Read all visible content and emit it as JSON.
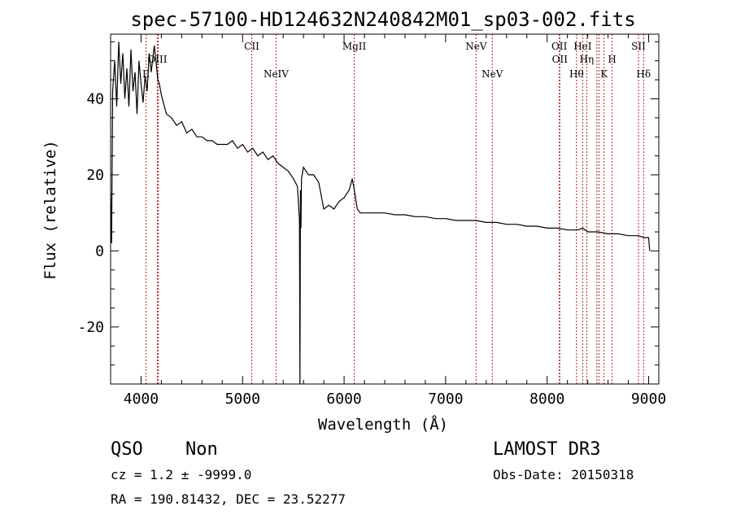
{
  "colors": {
    "spectrum": "#000000",
    "line_marker": "#b22222",
    "background": "#ffffff"
  },
  "chart_data": {
    "type": "line",
    "title": "spec-57100-HD124632N240842M01_sp03-002.fits",
    "xlabel": "Wavelength (Å)",
    "ylabel": "Flux (relative)",
    "xlim": [
      3700,
      9100
    ],
    "ylim": [
      -35,
      57
    ],
    "x_ticks": [
      4000,
      5000,
      6000,
      7000,
      8000,
      9000
    ],
    "y_ticks": [
      -20,
      0,
      20,
      40
    ],
    "grid": false,
    "series": [
      {
        "x": [
          3700,
          3710,
          3720,
          3740,
          3760,
          3780,
          3800,
          3820,
          3840,
          3860,
          3880,
          3900,
          3920,
          3940,
          3960,
          3980,
          4000,
          4020,
          4040,
          4060,
          4080,
          4100,
          4130,
          4150,
          4165,
          4180,
          4200,
          4250,
          4300,
          4350,
          4400,
          4450,
          4500,
          4550,
          4600,
          4650,
          4700,
          4750,
          4800,
          4850,
          4900,
          4950,
          5000,
          5050,
          5100,
          5150,
          5200,
          5250,
          5300,
          5350,
          5400,
          5450,
          5500,
          5540,
          5560,
          5565,
          5570,
          5575,
          5580,
          5600,
          5650,
          5700,
          5750,
          5800,
          5850,
          5900,
          5950,
          6000,
          6050,
          6080,
          6100,
          6130,
          6160,
          6200,
          6250,
          6300,
          6400,
          6500,
          6600,
          6700,
          6800,
          6900,
          7000,
          7100,
          7200,
          7300,
          7400,
          7500,
          7600,
          7700,
          7800,
          7900,
          8000,
          8100,
          8200,
          8300,
          8350,
          8400,
          8500,
          8600,
          8700,
          8800,
          8850,
          8900,
          8950,
          9000,
          9010
        ],
        "y": [
          15,
          2,
          42,
          50,
          38,
          55,
          44,
          52,
          40,
          48,
          38,
          53,
          42,
          47,
          36,
          50,
          44,
          39,
          46,
          42,
          52,
          47,
          54,
          49,
          45,
          44,
          41,
          36,
          35,
          33,
          34,
          31,
          32,
          30,
          30,
          29,
          29,
          28,
          28,
          28,
          29,
          27,
          28,
          26,
          27,
          25,
          26,
          24,
          25,
          23,
          22,
          21,
          19,
          17,
          8,
          -35,
          16,
          6,
          19,
          22,
          20,
          20,
          18,
          11,
          12,
          11,
          13,
          14,
          16,
          19,
          16,
          11,
          10,
          10,
          10,
          10,
          10,
          9.5,
          9.5,
          9,
          9,
          8.5,
          8.5,
          8,
          8,
          8,
          7.5,
          7.5,
          7,
          7,
          6.5,
          6.5,
          6,
          6,
          5.5,
          5.5,
          6,
          5,
          5,
          4.5,
          4.5,
          4,
          4,
          4,
          3.5,
          3.5,
          0
        ]
      }
    ],
    "spectral_lines": {
      "upper": [
        {
          "name": "OIII",
          "x": 4160
        },
        {
          "name": "CII",
          "x": 5090
        },
        {
          "name": "MgII",
          "x": 6100
        },
        {
          "name": "NeV",
          "x": 7300
        },
        {
          "name": "OII",
          "x": 8120
        },
        {
          "name": "OII",
          "x": 8125
        },
        {
          "name": "HeI",
          "x": 8350
        },
        {
          "name": "H",
          "x": 8640
        },
        {
          "name": "SII",
          "x": 8900
        }
      ],
      "lower": [
        {
          "name": "II",
          "x": 4050
        },
        {
          "name": "NeIV",
          "x": 5330
        },
        {
          "name": "NeV",
          "x": 7460
        },
        {
          "name": "Hθ",
          "x": 8290
        },
        {
          "name": "Hη",
          "x": 8390
        },
        {
          "name": "K",
          "x": 8560
        },
        {
          "name": "Hδ",
          "x": 8950
        }
      ],
      "extra_markers": [
        4170,
        8490,
        8510
      ]
    }
  },
  "info": {
    "class": "QSO",
    "subclass": "Non",
    "survey": "LAMOST DR3",
    "cz": "cz = 1.2 ± -9999.0",
    "obs_date": "Obs-Date: 20150318",
    "radec": "RA = 190.81432, DEC =  23.52277"
  }
}
